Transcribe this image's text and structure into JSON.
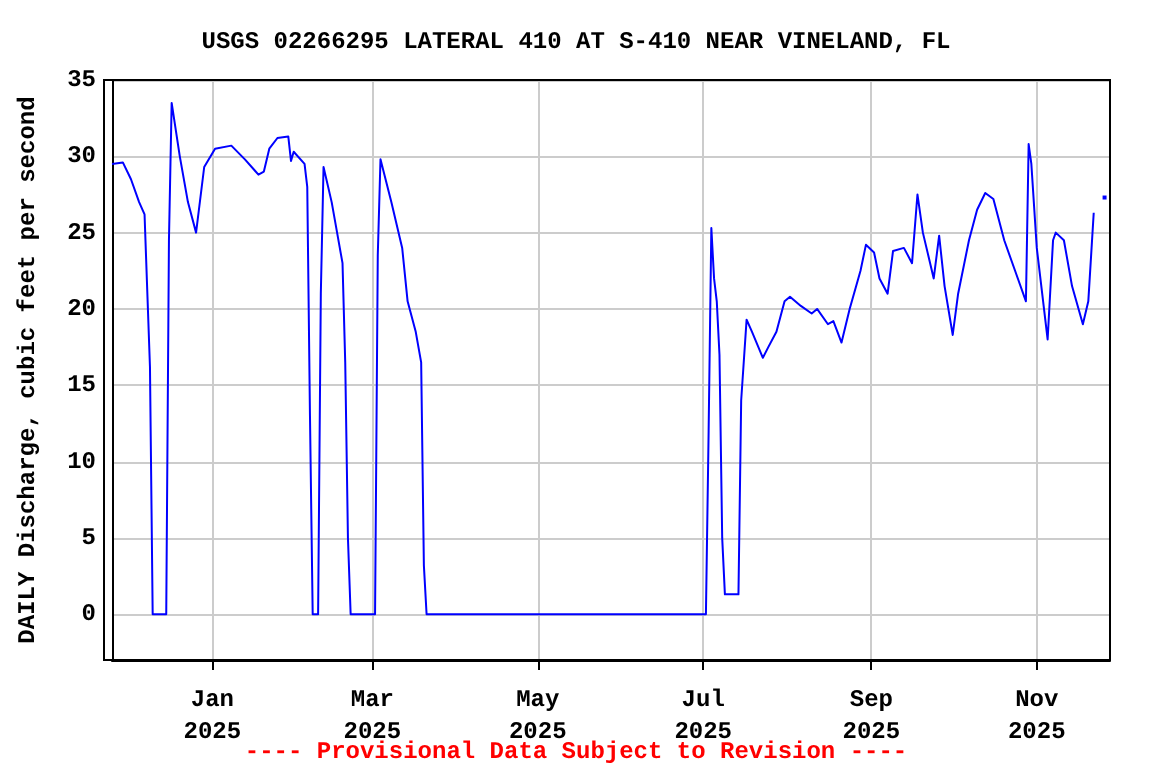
{
  "chart_data": {
    "type": "line",
    "title": "USGS 02266295 LATERAL 410 AT S-410 NEAR VINELAND, FL",
    "ylabel": "DAILY Discharge, cubic feet per second",
    "annotations": [
      "---- Provisional Data Subject to Revision ----"
    ],
    "x": [
      "2024-11-25",
      "2024-11-29",
      "2024-12-02",
      "2024-12-05",
      "2024-12-07",
      "2024-12-09",
      "2024-12-10",
      "2024-12-15",
      "2024-12-16",
      "2024-12-17",
      "2024-12-20",
      "2024-12-23",
      "2024-12-26",
      "2024-12-29",
      "2025-01-02",
      "2025-01-08",
      "2025-01-13",
      "2025-01-18",
      "2025-01-20",
      "2025-01-22",
      "2025-01-25",
      "2025-01-29",
      "2025-01-30",
      "2025-01-31",
      "2025-02-04",
      "2025-02-05",
      "2025-02-06",
      "2025-02-07",
      "2025-02-09",
      "2025-02-10",
      "2025-02-11",
      "2025-02-14",
      "2025-02-16",
      "2025-02-18",
      "2025-02-19",
      "2025-02-20",
      "2025-02-21",
      "2025-03-02",
      "2025-03-03",
      "2025-03-04",
      "2025-03-08",
      "2025-03-12",
      "2025-03-14",
      "2025-03-17",
      "2025-03-19",
      "2025-03-20",
      "2025-03-21",
      "2025-07-02",
      "2025-07-03",
      "2025-07-04",
      "2025-07-05",
      "2025-07-06",
      "2025-07-07",
      "2025-07-08",
      "2025-07-09",
      "2025-07-14",
      "2025-07-15",
      "2025-07-17",
      "2025-07-19",
      "2025-07-23",
      "2025-07-25",
      "2025-07-28",
      "2025-07-31",
      "2025-08-02",
      "2025-08-06",
      "2025-08-10",
      "2025-08-12",
      "2025-08-16",
      "2025-08-18",
      "2025-08-21",
      "2025-08-24",
      "2025-08-28",
      "2025-08-30",
      "2025-09-02",
      "2025-09-04",
      "2025-09-07",
      "2025-09-09",
      "2025-09-13",
      "2025-09-16",
      "2025-09-18",
      "2025-09-20",
      "2025-09-24",
      "2025-09-26",
      "2025-09-28",
      "2025-10-01",
      "2025-10-03",
      "2025-10-07",
      "2025-10-10",
      "2025-10-13",
      "2025-10-16",
      "2025-10-20",
      "2025-10-24",
      "2025-10-28",
      "2025-10-29",
      "2025-10-30",
      "2025-11-01",
      "2025-11-05",
      "2025-11-07",
      "2025-11-08",
      "2025-11-11",
      "2025-11-14",
      "2025-11-18",
      "2025-11-20",
      "2025-11-22",
      "2025-11-24",
      "2025-11-26"
    ],
    "series": [
      {
        "color": "#0000ff",
        "values": [
          29.5,
          29.6,
          28.5,
          27,
          26.2,
          16.2,
          0,
          0,
          24.5,
          33.5,
          30,
          27,
          25,
          29.3,
          30.5,
          30.7,
          29.8,
          28.8,
          29,
          30.5,
          31.2,
          31.3,
          29.7,
          30.3,
          29.5,
          28,
          13,
          0,
          0,
          21,
          29.3,
          27,
          25,
          23,
          16.5,
          5,
          0,
          0,
          23.5,
          29.8,
          27,
          24,
          20.5,
          18.5,
          16.5,
          3.2,
          0,
          0,
          12,
          25.3,
          22,
          20.5,
          17,
          5,
          1.3,
          1.3,
          14,
          19.3,
          18.5,
          16.8,
          17.5,
          18.5,
          20.5,
          20.8,
          20.2,
          19.7,
          20,
          19,
          19.2,
          17.8,
          20,
          22.5,
          24.2,
          23.7,
          22,
          21,
          23.8,
          24,
          23,
          27.5,
          25,
          22,
          24.8,
          21.5,
          18.3,
          21,
          24.5,
          26.5,
          27.6,
          27.2,
          24.5,
          22.5,
          20.5,
          30.8,
          29.5,
          24,
          18,
          24.5,
          25,
          24.5,
          21.5,
          19,
          20.5,
          26.3,
          null,
          27.3
        ]
      }
    ],
    "xlim": [
      "2024-11-25",
      "2025-11-28"
    ],
    "xticks": [
      {
        "value": "2025-01-01",
        "label": "Jan\n2025"
      },
      {
        "value": "2025-03-01",
        "label": "Mar\n2025"
      },
      {
        "value": "2025-05-01",
        "label": "May\n2025"
      },
      {
        "value": "2025-07-01",
        "label": "Jul\n2025"
      },
      {
        "value": "2025-09-01",
        "label": "Sep\n2025"
      },
      {
        "value": "2025-11-01",
        "label": "Nov\n2025"
      }
    ],
    "ylim": [
      -3,
      35
    ],
    "yticks": [
      0,
      5,
      10,
      15,
      20,
      25,
      30,
      35
    ],
    "grid": true,
    "marker": "none",
    "line_style": "solid"
  }
}
